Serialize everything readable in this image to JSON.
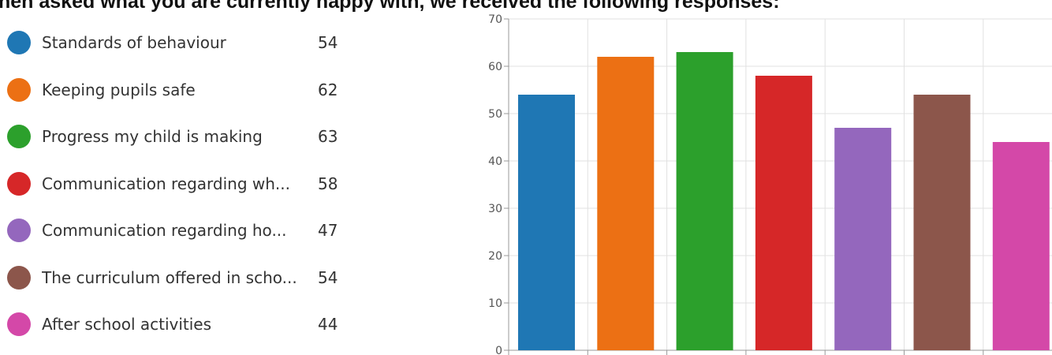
{
  "heading": "hen asked what you are currently happy with, we received the following responses:",
  "colors": {
    "grid": "#e1e1e1",
    "axis": "#999999"
  },
  "chart_data": {
    "type": "bar",
    "categories": [
      "Standards of behaviour",
      "Keeping pupils safe",
      "Progress my child is making",
      "Communication regarding wh...",
      "Communication regarding ho...",
      "The curriculum offered in scho...",
      "After school activities"
    ],
    "values": [
      54,
      62,
      63,
      58,
      47,
      54,
      44
    ],
    "colors": [
      "#1f77b4",
      "#ec7014",
      "#2ca02c",
      "#d62728",
      "#9467bd",
      "#8c564b",
      "#d448a8"
    ],
    "ylim": [
      0,
      70
    ],
    "yticks": [
      0,
      10,
      20,
      30,
      40,
      50,
      60,
      70
    ],
    "grid": true,
    "legend_position": "left",
    "title": "",
    "xlabel": "",
    "ylabel": ""
  }
}
